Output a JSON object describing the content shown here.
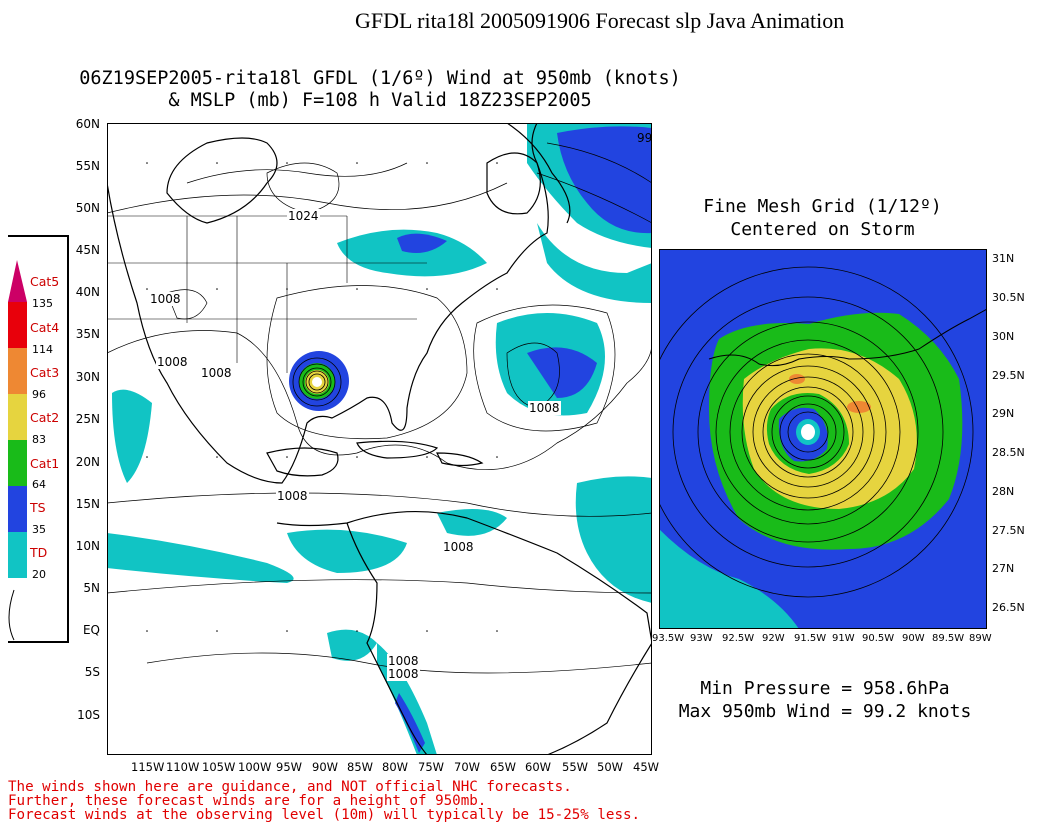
{
  "header": {
    "title": "GFDL rita18l 2005091906 Forecast slp Java Animation",
    "map_title_line1": "06Z19SEP2005-rita18l GFDL (1/6º) Wind at 950mb (knots)",
    "map_title_line2": "& MSLP (mb) F=108 h Valid 18Z23SEP2005"
  },
  "legend": {
    "categories": [
      {
        "label": "Cat5",
        "threshold": "135",
        "color": "#cc0066"
      },
      {
        "label": "Cat4",
        "threshold": "114",
        "color": "#e8000b"
      },
      {
        "label": "Cat3",
        "threshold": "96",
        "color": "#ee8833"
      },
      {
        "label": "Cat2",
        "threshold": "83",
        "color": "#e6d43f"
      },
      {
        "label": "Cat1",
        "threshold": "64",
        "color": "#19bb19"
      },
      {
        "label": "TS",
        "threshold": "35",
        "color": "#2244e0"
      },
      {
        "label": "TD",
        "threshold": "20",
        "color": "#11c4c4"
      }
    ]
  },
  "main_map": {
    "lat_labels": [
      "60N",
      "55N",
      "50N",
      "45N",
      "40N",
      "35N",
      "30N",
      "25N",
      "20N",
      "15N",
      "10N",
      "5N",
      "EQ",
      "5S",
      "10S"
    ],
    "lon_labels": [
      "115W",
      "110W",
      "105W",
      "100W",
      "95W",
      "90W",
      "85W",
      "80W",
      "75W",
      "70W",
      "65W",
      "60W",
      "55W",
      "50W",
      "45W"
    ],
    "isobar_labels": [
      "1024",
      "1008",
      "1008",
      "1008",
      "1008",
      "1008",
      "1008",
      "1008",
      "99"
    ]
  },
  "fine_mesh": {
    "title_line1": "Fine Mesh Grid (1/12º)",
    "title_line2": "Centered on Storm",
    "lat_labels": [
      "31N",
      "30.5N",
      "30N",
      "29.5N",
      "29N",
      "28.5N",
      "28N",
      "27.5N",
      "27N",
      "26.5N"
    ],
    "lon_labels": [
      "93.5W",
      "93W",
      "92.5W",
      "92W",
      "91.5W",
      "91W",
      "90.5W",
      "90W",
      "89.5W",
      "89W"
    ]
  },
  "stats": {
    "min_pressure": "Min Pressure = 958.6hPa",
    "max_wind": "Max 950mb Wind = 99.2 knots"
  },
  "disclaimer": {
    "line1": "The winds shown here are guidance, and NOT official NHC forecasts.",
    "line2": "Further, these forecast winds are for a height of 950mb.",
    "line3": "Forecast winds at the observing level (10m) will typically be 15-25% less."
  }
}
